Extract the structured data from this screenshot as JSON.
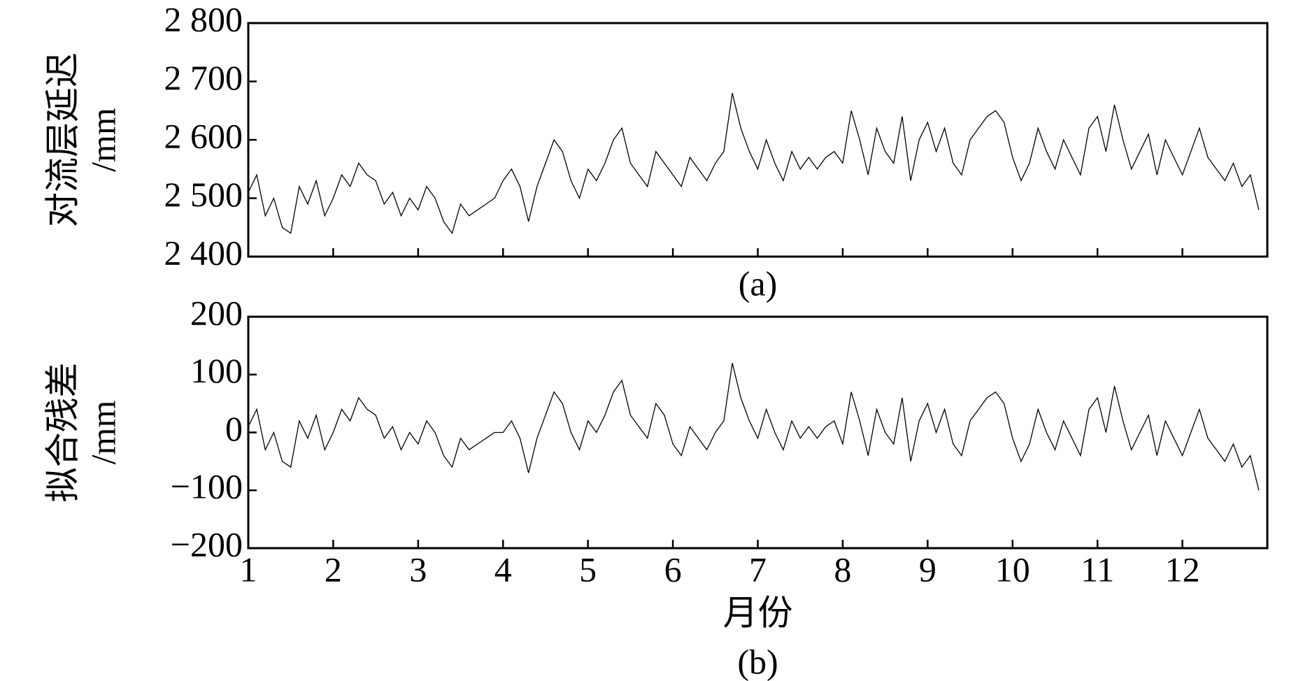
{
  "chart_data": [
    {
      "type": "line",
      "caption": "(a)",
      "ylabel": [
        "对流层延迟",
        "/mm"
      ],
      "color": "#000000",
      "xlim": [
        1,
        13
      ],
      "xticks": [
        1,
        2,
        3,
        4,
        5,
        6,
        7,
        8,
        9,
        10,
        11,
        12
      ],
      "show_xticklabels": false,
      "ylim": [
        2400,
        2800
      ],
      "yticks": [
        {
          "value": 2400,
          "label": "2 400"
        },
        {
          "value": 2500,
          "label": "2 500"
        },
        {
          "value": 2600,
          "label": "2 600"
        },
        {
          "value": 2700,
          "label": "2 700"
        },
        {
          "value": 2800,
          "label": "2 800"
        }
      ],
      "x": [
        1.0,
        1.1,
        1.2,
        1.3,
        1.4,
        1.5,
        1.6,
        1.7,
        1.8,
        1.9,
        2.0,
        2.1,
        2.2,
        2.3,
        2.4,
        2.5,
        2.6,
        2.7,
        2.8,
        2.9,
        3.0,
        3.1,
        3.2,
        3.3,
        3.4,
        3.5,
        3.6,
        3.7,
        3.8,
        3.9,
        4.0,
        4.1,
        4.2,
        4.3,
        4.4,
        4.5,
        4.6,
        4.7,
        4.8,
        4.9,
        5.0,
        5.1,
        5.2,
        5.3,
        5.4,
        5.5,
        5.6,
        5.7,
        5.8,
        5.9,
        6.0,
        6.1,
        6.2,
        6.3,
        6.4,
        6.5,
        6.6,
        6.7,
        6.8,
        6.9,
        7.0,
        7.1,
        7.2,
        7.3,
        7.4,
        7.5,
        7.6,
        7.7,
        7.8,
        7.9,
        8.0,
        8.1,
        8.2,
        8.3,
        8.4,
        8.5,
        8.6,
        8.7,
        8.8,
        8.9,
        9.0,
        9.1,
        9.2,
        9.3,
        9.4,
        9.5,
        9.6,
        9.7,
        9.8,
        9.9,
        10.0,
        10.1,
        10.2,
        10.3,
        10.4,
        10.5,
        10.6,
        10.7,
        10.8,
        10.9,
        11.0,
        11.1,
        11.2,
        11.3,
        11.4,
        11.5,
        11.6,
        11.7,
        11.8,
        11.9,
        12.0,
        12.1,
        12.2,
        12.3,
        12.4,
        12.5,
        12.6,
        12.7,
        12.8,
        12.9
      ],
      "values": [
        2510,
        2540,
        2470,
        2500,
        2450,
        2440,
        2520,
        2490,
        2530,
        2470,
        2500,
        2540,
        2520,
        2560,
        2540,
        2530,
        2490,
        2510,
        2470,
        2500,
        2480,
        2520,
        2500,
        2460,
        2440,
        2490,
        2470,
        2480,
        2490,
        2500,
        2530,
        2550,
        2520,
        2460,
        2520,
        2560,
        2600,
        2580,
        2530,
        2500,
        2550,
        2530,
        2560,
        2600,
        2620,
        2560,
        2540,
        2520,
        2580,
        2560,
        2540,
        2520,
        2570,
        2550,
        2530,
        2560,
        2580,
        2680,
        2620,
        2580,
        2550,
        2600,
        2560,
        2530,
        2580,
        2550,
        2570,
        2550,
        2570,
        2580,
        2560,
        2650,
        2600,
        2540,
        2620,
        2580,
        2560,
        2640,
        2530,
        2600,
        2630,
        2580,
        2620,
        2560,
        2540,
        2600,
        2620,
        2640,
        2650,
        2630,
        2570,
        2530,
        2560,
        2620,
        2580,
        2550,
        2600,
        2570,
        2540,
        2620,
        2640,
        2580,
        2660,
        2600,
        2550,
        2580,
        2610,
        2540,
        2600,
        2570,
        2540,
        2580,
        2620,
        2570,
        2550,
        2530,
        2560,
        2520,
        2540,
        2480
      ]
    },
    {
      "type": "line",
      "caption": "(b)",
      "ylabel": [
        "拟合残差",
        "/mm"
      ],
      "xlabel": "月份",
      "color": "#000000",
      "xlim": [
        1,
        13
      ],
      "xticks": [
        1,
        2,
        3,
        4,
        5,
        6,
        7,
        8,
        9,
        10,
        11,
        12
      ],
      "show_xticklabels": true,
      "ylim": [
        -200,
        200
      ],
      "yticks": [
        {
          "value": -200,
          "label": "−200"
        },
        {
          "value": -100,
          "label": "−100"
        },
        0,
        100,
        200
      ],
      "x": [
        1.0,
        1.1,
        1.2,
        1.3,
        1.4,
        1.5,
        1.6,
        1.7,
        1.8,
        1.9,
        2.0,
        2.1,
        2.2,
        2.3,
        2.4,
        2.5,
        2.6,
        2.7,
        2.8,
        2.9,
        3.0,
        3.1,
        3.2,
        3.3,
        3.4,
        3.5,
        3.6,
        3.7,
        3.8,
        3.9,
        4.0,
        4.1,
        4.2,
        4.3,
        4.4,
        4.5,
        4.6,
        4.7,
        4.8,
        4.9,
        5.0,
        5.1,
        5.2,
        5.3,
        5.4,
        5.5,
        5.6,
        5.7,
        5.8,
        5.9,
        6.0,
        6.1,
        6.2,
        6.3,
        6.4,
        6.5,
        6.6,
        6.7,
        6.8,
        6.9,
        7.0,
        7.1,
        7.2,
        7.3,
        7.4,
        7.5,
        7.6,
        7.7,
        7.8,
        7.9,
        8.0,
        8.1,
        8.2,
        8.3,
        8.4,
        8.5,
        8.6,
        8.7,
        8.8,
        8.9,
        9.0,
        9.1,
        9.2,
        9.3,
        9.4,
        9.5,
        9.6,
        9.7,
        9.8,
        9.9,
        10.0,
        10.1,
        10.2,
        10.3,
        10.4,
        10.5,
        10.6,
        10.7,
        10.8,
        10.9,
        11.0,
        11.1,
        11.2,
        11.3,
        11.4,
        11.5,
        11.6,
        11.7,
        11.8,
        11.9,
        12.0,
        12.1,
        12.2,
        12.3,
        12.4,
        12.5,
        12.6,
        12.7,
        12.8,
        12.9
      ],
      "values": [
        10,
        40,
        -30,
        0,
        -50,
        -60,
        20,
        -10,
        30,
        -30,
        0,
        40,
        20,
        60,
        40,
        30,
        -10,
        10,
        -30,
        0,
        -20,
        20,
        0,
        -40,
        -60,
        -10,
        -30,
        -20,
        -10,
        0,
        0,
        20,
        -10,
        -70,
        -10,
        30,
        70,
        50,
        0,
        -30,
        20,
        0,
        30,
        70,
        90,
        30,
        10,
        -10,
        50,
        30,
        -20,
        -40,
        10,
        -10,
        -30,
        0,
        20,
        120,
        60,
        20,
        -10,
        40,
        0,
        -30,
        20,
        -10,
        10,
        -10,
        10,
        20,
        -20,
        70,
        20,
        -40,
        40,
        0,
        -20,
        60,
        -50,
        20,
        50,
        0,
        40,
        -20,
        -40,
        20,
        40,
        60,
        70,
        50,
        -10,
        -50,
        -20,
        40,
        0,
        -30,
        20,
        -10,
        -40,
        40,
        60,
        0,
        80,
        20,
        -30,
        0,
        30,
        -40,
        20,
        -10,
        -40,
        0,
        40,
        -10,
        -30,
        -50,
        -20,
        -60,
        -40,
        -100
      ]
    }
  ]
}
